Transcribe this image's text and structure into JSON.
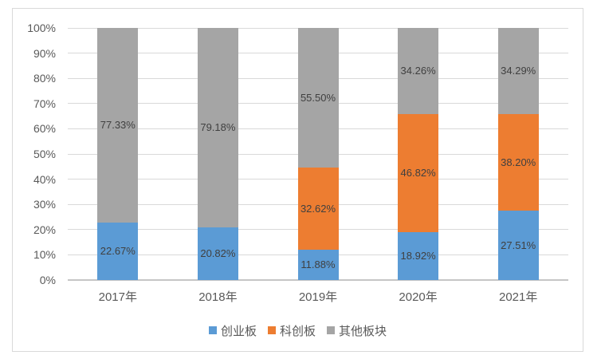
{
  "chart_data": {
    "type": "bar",
    "stacked": true,
    "percent_stacked": true,
    "title": "",
    "xlabel": "",
    "ylabel": "",
    "categories": [
      "2017年",
      "2018年",
      "2019年",
      "2020年",
      "2021年"
    ],
    "series": [
      {
        "name": "创业板",
        "color": "#5B9BD5",
        "values": [
          22.67,
          20.82,
          11.88,
          18.92,
          27.51
        ],
        "labels": [
          "22.67%",
          "20.82%",
          "11.88%",
          "18.92%",
          "27.51%"
        ]
      },
      {
        "name": "科创板",
        "color": "#ED7D31",
        "values": [
          0,
          0,
          32.62,
          46.82,
          38.2
        ],
        "labels": [
          "",
          "",
          "32.62%",
          "46.82%",
          "38.20%"
        ]
      },
      {
        "name": "其他板块",
        "color": "#A5A5A5",
        "values": [
          77.33,
          79.18,
          55.5,
          34.26,
          34.29
        ],
        "labels": [
          "77.33%",
          "79.18%",
          "55.50%",
          "34.26%",
          "34.29%"
        ]
      }
    ],
    "ylim": [
      0,
      100
    ],
    "ytick_step": 10,
    "yticks": [
      "0%",
      "10%",
      "20%",
      "30%",
      "40%",
      "50%",
      "60%",
      "70%",
      "80%",
      "90%",
      "100%"
    ],
    "grid": true,
    "legend_position": "bottom"
  },
  "colors": {
    "series_blue": "#5B9BD5",
    "series_orange": "#ED7D31",
    "series_gray": "#A5A5A5",
    "gridline": "#D9D9D9",
    "axis_line": "#C6C6C6",
    "frame_border": "#D9D9D9",
    "tick_text": "#595959",
    "data_label_text": "#404040",
    "background": "#FFFFFF"
  }
}
